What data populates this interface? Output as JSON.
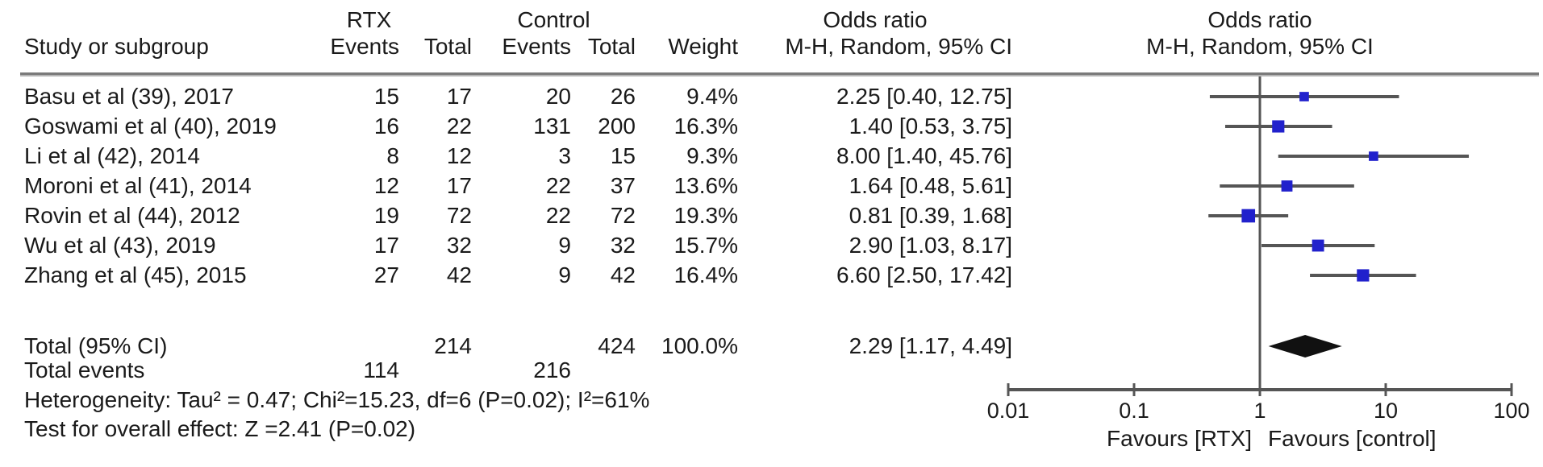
{
  "header": {
    "study_col": "Study or subgroup",
    "group_rtx": "RTX",
    "group_control": "Control",
    "events_rtx": "Events",
    "total_rtx": "Total",
    "events_control": "Events",
    "total_control": "Total",
    "weight": "Weight",
    "or_line1": "Odds ratio",
    "or_line2": "M-H, Random, 95% CI",
    "plot_line1": "Odds ratio",
    "plot_line2": "M-H, Random, 95% CI"
  },
  "rows": [
    {
      "study": "Basu et al (39), 2017",
      "events_rtx": "15",
      "total_rtx": "17",
      "events_control": "20",
      "total_control": "26",
      "weight": "9.4%",
      "or_ci": "2.25 [0.40, 12.75]"
    },
    {
      "study": "Goswami et al (40), 2019",
      "events_rtx": "16",
      "total_rtx": "22",
      "events_control": "131",
      "total_control": "200",
      "weight": "16.3%",
      "or_ci": "1.40 [0.53, 3.75]"
    },
    {
      "study": "Li et al (42), 2014",
      "events_rtx": "8",
      "total_rtx": "12",
      "events_control": "3",
      "total_control": "15",
      "weight": "9.3%",
      "or_ci": "8.00 [1.40, 45.76]"
    },
    {
      "study": "Moroni et al (41), 2014",
      "events_rtx": "12",
      "total_rtx": "17",
      "events_control": "22",
      "total_control": "37",
      "weight": "13.6%",
      "or_ci": "1.64 [0.48, 5.61]"
    },
    {
      "study": "Rovin et al (44), 2012",
      "events_rtx": "19",
      "total_rtx": "72",
      "events_control": "22",
      "total_control": "72",
      "weight": "19.3%",
      "or_ci": "0.81 [0.39, 1.68]"
    },
    {
      "study": "Wu et al (43), 2019",
      "events_rtx": "17",
      "total_rtx": "32",
      "events_control": "9",
      "total_control": "32",
      "weight": "15.7%",
      "or_ci": "2.90 [1.03, 8.17]"
    },
    {
      "study": "Zhang et al (45), 2015",
      "events_rtx": "27",
      "total_rtx": "42",
      "events_control": "9",
      "total_control": "42",
      "weight": "16.4%",
      "or_ci": "6.60 [2.50, 17.42]"
    }
  ],
  "totals": {
    "label": "Total (95% CI)",
    "total_rtx": "214",
    "total_control": "424",
    "weight": "100.0%",
    "or_ci": "2.29 [1.17, 4.49]",
    "events_label": "Total events",
    "events_rtx": "114",
    "events_control": "216"
  },
  "footer": {
    "heterogeneity": "Heterogeneity: Tau² = 0.47; Chi²=15.23, df=6 (P=0.02); I²=61%",
    "overall_effect": "Test for overall effect: Z =2.41 (P=0.02)"
  },
  "axis": {
    "tick_labels": [
      "0.01",
      "0.1",
      "1",
      "10",
      "100"
    ],
    "favours_left": "Favours [RTX]",
    "favours_right": "Favours [control]"
  },
  "colors": {
    "marker_blue": "#2121cc",
    "ci_gray": "#555555",
    "axis_gray": "#555555",
    "diamond_black": "#111111",
    "rule_gray": "#7a7a7a"
  },
  "chart_data": {
    "type": "scatter",
    "subtype": "forest-plot",
    "effect_measure": "Odds ratio, M-H, Random, 95% CI",
    "x_scale": "log10",
    "xlim": [
      0.01,
      100
    ],
    "x_ticks": [
      0.01,
      0.1,
      1,
      10,
      100
    ],
    "no_effect_line": 1,
    "studies": [
      {
        "label": "Basu et al (39), 2017",
        "or": 2.25,
        "ci_low": 0.4,
        "ci_high": 12.75,
        "weight_pct": 9.4
      },
      {
        "label": "Goswami et al (40), 2019",
        "or": 1.4,
        "ci_low": 0.53,
        "ci_high": 3.75,
        "weight_pct": 16.3
      },
      {
        "label": "Li et al (42), 2014",
        "or": 8.0,
        "ci_low": 1.4,
        "ci_high": 45.76,
        "weight_pct": 9.3
      },
      {
        "label": "Moroni et al (41), 2014",
        "or": 1.64,
        "ci_low": 0.48,
        "ci_high": 5.61,
        "weight_pct": 13.6
      },
      {
        "label": "Rovin et al (44), 2012",
        "or": 0.81,
        "ci_low": 0.39,
        "ci_high": 1.68,
        "weight_pct": 19.3
      },
      {
        "label": "Wu et al (43), 2019",
        "or": 2.9,
        "ci_low": 1.03,
        "ci_high": 8.17,
        "weight_pct": 15.7
      },
      {
        "label": "Zhang et al (45), 2015",
        "or": 6.6,
        "ci_low": 2.5,
        "ci_high": 17.42,
        "weight_pct": 16.4
      }
    ],
    "summary": {
      "label": "Total (95% CI)",
      "or": 2.29,
      "ci_low": 1.17,
      "ci_high": 4.49,
      "weight_pct": 100.0
    },
    "favours_left": "Favours [RTX]",
    "favours_right": "Favours [control]"
  }
}
